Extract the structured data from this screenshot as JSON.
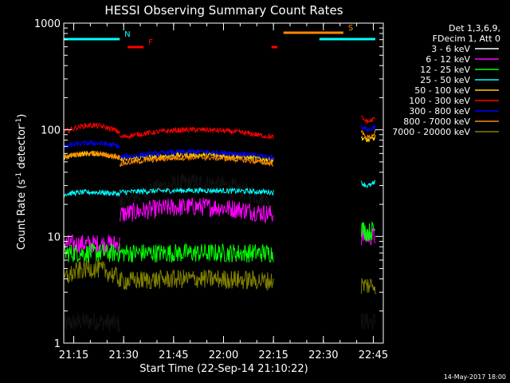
{
  "chart_data": {
    "type": "line",
    "title": "HESSI Observing Summary Count Rates",
    "xlabel": "Start Time (22-Sep-14 21:10:22)",
    "ylabel_main": "Count Rate (s",
    "ylabel_sup1": "-1",
    "ylabel_mid": " detector",
    "ylabel_sup2": "-1",
    "ylabel_end": ")",
    "ylog": true,
    "ylim": [
      1,
      1000
    ],
    "xlim_min": [
      21.2,
      22.8
    ],
    "xticks": [
      {
        "t": 21.25,
        "label": "21:15"
      },
      {
        "t": 21.5,
        "label": "21:30"
      },
      {
        "t": 21.75,
        "label": "21:45"
      },
      {
        "t": 22.0,
        "label": "22:00"
      },
      {
        "t": 22.25,
        "label": "22:15"
      },
      {
        "t": 22.5,
        "label": "22:30"
      },
      {
        "t": 22.75,
        "label": "22:45"
      }
    ],
    "yticks": [
      {
        "v": 1,
        "label": "1"
      },
      {
        "v": 10,
        "label": "10"
      },
      {
        "v": 100,
        "label": "100"
      },
      {
        "v": 1000,
        "label": "1000"
      }
    ],
    "legend_header": [
      "Det 1,3,6,9,",
      "FDecim 1, Att 0"
    ],
    "series": [
      {
        "name": "3 - 6 keV",
        "color": "#000000",
        "seg1": [
          1.5,
          1.6
        ],
        "seg2": [
          20,
          32
        ],
        "seg3": [
          1.6,
          1.6
        ]
      },
      {
        "name": "6 - 12 keV",
        "color": "#ff00ff",
        "seg1": [
          8.5,
          8.5
        ],
        "seg2": [
          16,
          19
        ],
        "seg3": [
          10,
          10
        ]
      },
      {
        "name": "12 - 25 keV",
        "color": "#00ff00",
        "seg1": [
          7.0,
          7.0
        ],
        "seg2": [
          7.0,
          7.0
        ],
        "seg3": [
          12,
          11
        ]
      },
      {
        "name": "25 - 50 keV",
        "color": "#00ffff",
        "seg1": [
          25,
          26
        ],
        "seg2": [
          26,
          27
        ],
        "seg3": [
          32,
          30
        ]
      },
      {
        "name": "50 - 100 keV",
        "color": "#ffd000",
        "seg1": [
          55,
          60
        ],
        "seg2": [
          52,
          58
        ],
        "seg3": [
          85,
          80
        ]
      },
      {
        "name": "100 - 300 keV",
        "color": "#ff0000",
        "seg1": [
          95,
          110
        ],
        "seg2": [
          85,
          100
        ],
        "seg3": [
          130,
          120
        ]
      },
      {
        "name": "300 - 800 keV",
        "color": "#0000ff",
        "seg1": [
          70,
          75
        ],
        "seg2": [
          55,
          62
        ],
        "seg3": [
          110,
          100
        ]
      },
      {
        "name": "800 - 7000 keV",
        "color": "#ff8800",
        "seg1": [
          55,
          60
        ],
        "seg2": [
          48,
          55
        ],
        "seg3": [
          95,
          85
        ]
      },
      {
        "name": "7000 - 20000 keV",
        "color": "#808000",
        "seg1": [
          4.0,
          5.0
        ],
        "seg2": [
          3.8,
          4.0
        ],
        "seg3": [
          3.5,
          3.5
        ]
      }
    ],
    "flags": [
      {
        "label": "N",
        "color": "#00ffff",
        "bars": [
          [
            21.2,
            21.48
          ],
          [
            22.48,
            22.76
          ]
        ]
      },
      {
        "label": "F",
        "color": "#ff0000",
        "bars": [
          [
            21.52,
            21.6
          ],
          [
            22.24,
            22.27
          ]
        ]
      },
      {
        "label": "S",
        "color": "#ff8800",
        "bars": [
          [
            22.3,
            22.6
          ]
        ]
      }
    ],
    "timestamp": "14-May-2017 18:00"
  }
}
